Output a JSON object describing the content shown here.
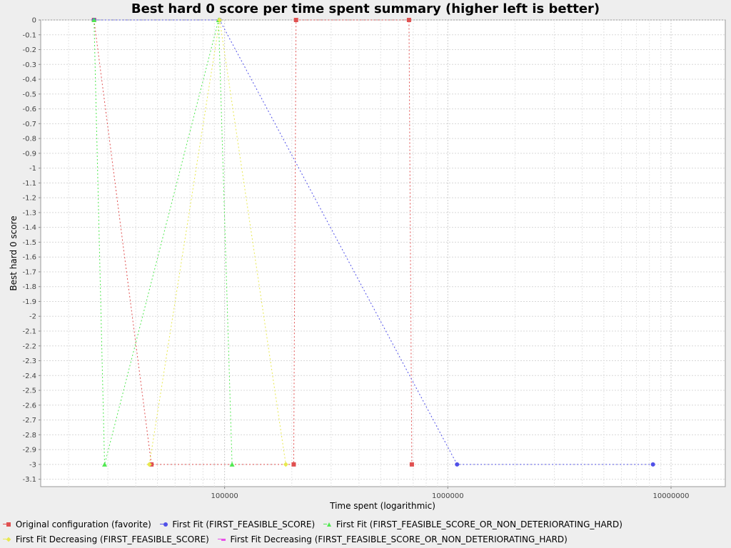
{
  "chart_data": {
    "type": "line",
    "title": "Best hard 0 score per time spent summary (higher left is better)",
    "xlabel": "Time spent (logarithmic)",
    "ylabel": "Best hard 0 score",
    "x_scale": "log",
    "xlim": [
      15000,
      17500000
    ],
    "ylim": [
      -3.15,
      0
    ],
    "x_ticks": [
      100000,
      1000000,
      10000000
    ],
    "y_ticks": [
      0,
      -0.1,
      -0.2,
      -0.3,
      -0.4,
      -0.5,
      -0.6,
      -0.7,
      -0.8,
      -0.9,
      -1,
      -1.1,
      -1.2,
      -1.3,
      -1.4,
      -1.5,
      -1.6,
      -1.7,
      -1.8,
      -1.9,
      -2,
      -2.1,
      -2.2,
      -2.3,
      -2.4,
      -2.5,
      -2.6,
      -2.7,
      -2.8,
      -2.9,
      -3,
      -3.1
    ],
    "grid": true,
    "legend_position": "bottom",
    "series": [
      {
        "name": "Original configuration (favorite)",
        "color": "#e05050",
        "marker": "square",
        "points": [
          [
            26000,
            0
          ],
          [
            47000,
            -3
          ],
          [
            204000,
            -3
          ],
          [
            209000,
            0
          ],
          [
            670000,
            0
          ],
          [
            690000,
            -3
          ]
        ]
      },
      {
        "name": "First Fit (FIRST_FEASIBLE_SCORE)",
        "color": "#5050e8",
        "marker": "circle",
        "points": [
          [
            26000,
            0
          ],
          [
            95000,
            0
          ],
          [
            1100000,
            -3
          ],
          [
            8300000,
            -3
          ]
        ]
      },
      {
        "name": "First Fit (FIRST_FEASIBLE_SCORE_OR_NON_DETERIORATING_HARD)",
        "color": "#50e850",
        "marker": "triangle",
        "points": [
          [
            26000,
            0
          ],
          [
            29000,
            -3
          ],
          [
            94000,
            0
          ],
          [
            108000,
            -3
          ]
        ]
      },
      {
        "name": "First Fit Decreasing (FIRST_FEASIBLE_SCORE)",
        "color": "#e8e850",
        "marker": "diamond",
        "points": [
          [
            46000,
            -3
          ],
          [
            95000,
            0
          ],
          [
            188000,
            -3
          ]
        ]
      },
      {
        "name": "First Fit Decreasing (FIRST_FEASIBLE_SCORE_OR_NON_DETERIORATING_HARD)",
        "color": "#e850e8",
        "marker": "rect",
        "points": []
      }
    ]
  }
}
